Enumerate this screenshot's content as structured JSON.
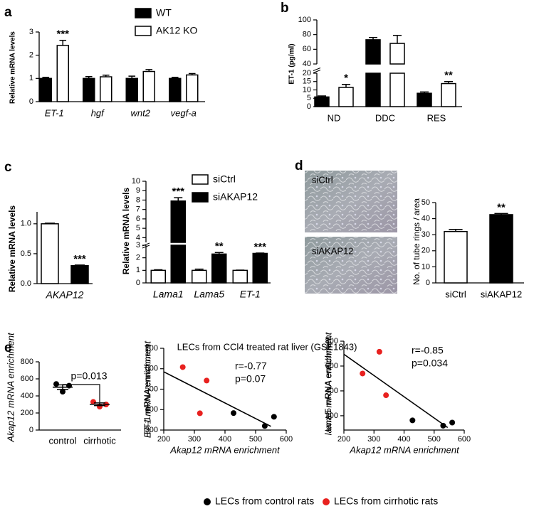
{
  "chart_data": [
    {
      "type": "bar",
      "panel": "a",
      "ylabel": "Relative mRNA levels",
      "categories": [
        "ET-1",
        "hgf",
        "wnt2",
        "vegf-a"
      ],
      "series": [
        {
          "name": "WT",
          "color": "#000000",
          "values": [
            1.0,
            1.0,
            1.0,
            1.0
          ],
          "errors": [
            0.05,
            0.08,
            0.1,
            0.05
          ],
          "significance": [
            null,
            null,
            null,
            null
          ]
        },
        {
          "name": "AK12 KO",
          "color": "#ffffff",
          "values": [
            2.42,
            1.07,
            1.3,
            1.15
          ],
          "errors": [
            0.22,
            0.07,
            0.08,
            0.06
          ],
          "significance": [
            "***",
            null,
            null,
            null
          ]
        }
      ],
      "ylim": [
        0,
        3
      ],
      "yticks": [
        0,
        1,
        2,
        3
      ]
    },
    {
      "type": "bar",
      "panel": "b",
      "ylabel": "ET-1 (pg/ml)",
      "categories": [
        "ND",
        "DDC",
        "RES"
      ],
      "series": [
        {
          "name": null,
          "color": "#000000",
          "values": [
            5.8,
            73,
            8
          ],
          "errors": [
            0.6,
            3,
            0.8
          ],
          "significance": [
            null,
            null,
            null
          ]
        },
        {
          "name": null,
          "color": "#ffffff",
          "values": [
            11.5,
            68,
            13.8
          ],
          "errors": [
            1.8,
            11,
            1.2
          ],
          "significance": [
            "*",
            null,
            "**"
          ]
        }
      ],
      "ylim": [
        0,
        100
      ],
      "ybreak": [
        20,
        40
      ],
      "yticks": [
        0,
        5,
        10,
        15,
        20,
        40,
        60,
        80,
        100
      ]
    },
    {
      "type": "bar",
      "panel": "c",
      "ylabel": "Relative mRNA levels",
      "categories": [
        "AKAP12"
      ],
      "series": [
        {
          "name": null,
          "color": "#ffffff",
          "values": [
            1.0
          ],
          "errors": [
            0.01
          ],
          "significance": [
            null
          ]
        },
        {
          "name": null,
          "color": "#000000",
          "values": [
            0.3
          ],
          "errors": [
            0.01
          ],
          "significance": [
            "***"
          ]
        }
      ],
      "ylim": [
        0,
        1.2
      ],
      "yticks": [
        {
          "value": 0,
          "label": "0.0"
        },
        0.5,
        {
          "value": 1,
          "label": "1.0"
        }
      ]
    },
    {
      "type": "bar",
      "ylabel": "Relative mRNA levels",
      "categories": [
        "Lama1",
        "Lama5",
        "ET-1"
      ],
      "series": [
        {
          "name": "siCtrl",
          "color": "#ffffff",
          "values": [
            1.0,
            1.0,
            1.0
          ],
          "errors": [
            0.05,
            0.1,
            0.02
          ],
          "significance": [
            null,
            null,
            null
          ]
        },
        {
          "name": "siAKAP12",
          "color": "#000000",
          "values": [
            7.9,
            2.3,
            2.35
          ],
          "errors": [
            0.35,
            0.12,
            0.03
          ],
          "significance": [
            "***",
            "**",
            "***"
          ]
        }
      ],
      "ylim": [
        0,
        10
      ],
      "ybreak": [
        3,
        3.5
      ],
      "yticks": [
        0,
        1,
        2,
        3,
        4,
        5,
        6,
        7,
        8,
        9,
        10
      ]
    },
    {
      "type": "bar",
      "panel": "d",
      "ylabel": "No. of tube rings / area",
      "image_labels": [
        "siCtrl",
        "siAKAP12"
      ],
      "categories": [
        "siCtrl",
        "siAKAP12"
      ],
      "values": [
        32,
        42.5
      ],
      "errors": [
        1.3,
        0.7
      ],
      "colors": [
        "#ffffff",
        "#000000"
      ],
      "significance": [
        null,
        "**"
      ],
      "ylim": [
        0,
        50
      ],
      "yticks": [
        0,
        10,
        20,
        30,
        40,
        50
      ]
    },
    {
      "type": "strip",
      "panel": "e",
      "title": "LECs from CCl4 treated rat liver (GSE1843)",
      "ylabel": "Akap12 mRNA enrichment",
      "categories": [
        "control",
        "cirrhotic"
      ],
      "values": [
        [
          540,
          520,
          450
        ],
        [
          330,
          300,
          275
        ]
      ],
      "colors": [
        "#000000",
        "#e8211f"
      ],
      "means": [
        503,
        302
      ],
      "errors": [
        27,
        16
      ],
      "annotation": "p=0.013",
      "ylim": [
        0,
        800
      ],
      "yticks": [
        0,
        200,
        400,
        600,
        800
      ]
    },
    {
      "type": "scatter",
      "xlabel": "Akap12 mRNA enrichment",
      "ylabel": "ET-1 mRNA enrichment",
      "series": [
        {
          "name": "LECs from control rats",
          "color": "#000000",
          "x": [
            428,
            530,
            560
          ],
          "y": [
            383,
            320,
            365
          ]
        },
        {
          "name": "LECs from cirrhotic rats",
          "color": "#e8211f",
          "x": [
            262,
            318,
            340
          ],
          "y": [
            608,
            382,
            542
          ]
        }
      ],
      "trendline": {
        "x": [
          200,
          550
        ],
        "y": [
          585,
          318
        ]
      },
      "annotations": [
        "r=-0.77",
        "p=0.07"
      ],
      "xlim": [
        200,
        600
      ],
      "xticks": [
        200,
        300,
        400,
        500,
        600
      ],
      "ylim": [
        300,
        700
      ],
      "yticks": [
        300,
        400,
        500,
        600,
        700
      ]
    },
    {
      "type": "scatter",
      "xlabel": "Akap12 mRNA enrichment",
      "ylabel": "lama5 mRNA enrichment",
      "series": [
        {
          "name": "LECs from control rats",
          "color": "#000000",
          "x": [
            428,
            530,
            560
          ],
          "y": [
            163,
            120,
            145
          ]
        },
        {
          "name": "LECs from cirrhotic rats",
          "color": "#e8211f",
          "x": [
            262,
            318,
            340
          ],
          "y": [
            540,
            715,
            365
          ]
        }
      ],
      "trendline": {
        "x": [
          200,
          545
        ],
        "y": [
          695,
          105
        ]
      },
      "annotations": [
        "r=-0.85",
        "p=0.034"
      ],
      "xlim": [
        200,
        600
      ],
      "xticks": [
        200,
        300,
        400,
        500,
        600
      ],
      "ylim": [
        85,
        800
      ],
      "yticks": [
        200,
        400,
        600,
        800
      ]
    }
  ]
}
